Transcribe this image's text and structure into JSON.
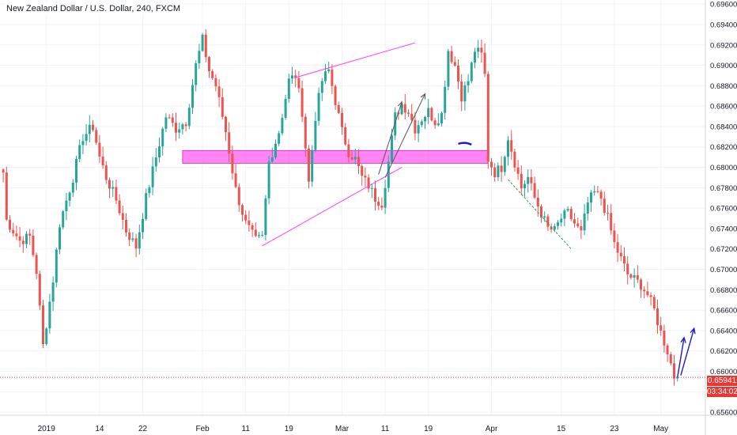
{
  "title": "New Zealand Dollar / U.S. Dollar, 240, FXCM",
  "chart_data": {
    "type": "candlestick",
    "colors": {
      "up": "#26a69a",
      "down": "#ef5350",
      "grid": "#f0f3fa",
      "axis": "#d1d4dc",
      "text": "#131722",
      "price_line": "#e53935",
      "zone": "#ff5cf0",
      "wedge": "#ff40ff",
      "arrow_dark": "#555555",
      "arrow_blue": "#1c1cc8",
      "green_line": "#2e9e4e"
    },
    "ylim": [
      0.6557,
      0.6964
    ],
    "y_ticks": [
      "0.69600",
      "0.69400",
      "0.69200",
      "0.69000",
      "0.68800",
      "0.68600",
      "0.68400",
      "0.68200",
      "0.68000",
      "0.67800",
      "0.67600",
      "0.67400",
      "0.67200",
      "0.67000",
      "0.66800",
      "0.66600",
      "0.66400",
      "0.66200",
      "0.66000",
      "0.65800",
      "0.65600"
    ],
    "x_ticks": [
      "2019",
      "14",
      "22",
      "Feb",
      "11",
      "19",
      "Mar",
      "11",
      "19",
      "Apr",
      "15",
      "23",
      "May"
    ],
    "last_price": "0.65941",
    "countdown": "03:34:02",
    "anchors": [
      [
        0,
        0.6795
      ],
      [
        1,
        0.6748
      ],
      [
        5,
        0.6728
      ],
      [
        8,
        0.6732
      ],
      [
        10,
        0.6698
      ],
      [
        12,
        0.6625
      ],
      [
        15,
        0.669
      ],
      [
        17,
        0.6745
      ],
      [
        21,
        0.679
      ],
      [
        24,
        0.683
      ],
      [
        27,
        0.684
      ],
      [
        29,
        0.681
      ],
      [
        31,
        0.679
      ],
      [
        34,
        0.6768
      ],
      [
        37,
        0.6738
      ],
      [
        40,
        0.6722
      ],
      [
        43,
        0.677
      ],
      [
        46,
        0.681
      ],
      [
        49,
        0.685
      ],
      [
        52,
        0.6838
      ],
      [
        55,
        0.6845
      ],
      [
        58,
        0.69
      ],
      [
        60,
        0.6925
      ],
      [
        62,
        0.6895
      ],
      [
        64,
        0.688
      ],
      [
        67,
        0.6835
      ],
      [
        70,
        0.6778
      ],
      [
        73,
        0.6745
      ],
      [
        76,
        0.6728
      ],
      [
        78,
        0.6731
      ],
      [
        80,
        0.6805
      ],
      [
        83,
        0.6835
      ],
      [
        86,
        0.6885
      ],
      [
        88,
        0.689
      ],
      [
        90,
        0.6855
      ],
      [
        92,
        0.6785
      ],
      [
        94,
        0.685
      ],
      [
        96,
        0.6885
      ],
      [
        98,
        0.6895
      ],
      [
        100,
        0.6865
      ],
      [
        102,
        0.6835
      ],
      [
        104,
        0.6815
      ],
      [
        106,
        0.6808
      ],
      [
        108,
        0.679
      ],
      [
        110,
        0.6782
      ],
      [
        112,
        0.677
      ],
      [
        114,
        0.6765
      ],
      [
        116,
        0.6805
      ],
      [
        118,
        0.685
      ],
      [
        120,
        0.6862
      ],
      [
        122,
        0.6855
      ],
      [
        124,
        0.6838
      ],
      [
        126,
        0.6848
      ],
      [
        128,
        0.6855
      ],
      [
        130,
        0.6845
      ],
      [
        132,
        0.6852
      ],
      [
        134,
        0.6915
      ],
      [
        136,
        0.69
      ],
      [
        138,
        0.687
      ],
      [
        140,
        0.6885
      ],
      [
        142,
        0.6915
      ],
      [
        144,
        0.691
      ],
      [
        145,
        0.689
      ],
      [
        146,
        0.6808
      ],
      [
        148,
        0.6795
      ],
      [
        150,
        0.68
      ],
      [
        152,
        0.683
      ],
      [
        154,
        0.6805
      ],
      [
        156,
        0.678
      ],
      [
        158,
        0.679
      ],
      [
        160,
        0.677
      ],
      [
        162,
        0.6755
      ],
      [
        164,
        0.674
      ],
      [
        166,
        0.6738
      ],
      [
        168,
        0.675
      ],
      [
        170,
        0.6755
      ],
      [
        172,
        0.6745
      ],
      [
        174,
        0.6735
      ],
      [
        176,
        0.6765
      ],
      [
        178,
        0.6775
      ],
      [
        180,
        0.677
      ],
      [
        182,
        0.675
      ],
      [
        184,
        0.6725
      ],
      [
        186,
        0.671
      ],
      [
        188,
        0.6695
      ],
      [
        190,
        0.669
      ],
      [
        192,
        0.6685
      ],
      [
        194,
        0.6675
      ],
      [
        196,
        0.666
      ],
      [
        198,
        0.6638
      ],
      [
        200,
        0.662
      ],
      [
        202,
        0.6595
      ],
      [
        203,
        0.6594
      ]
    ],
    "zone": {
      "x0": 54,
      "x1": 146,
      "y0": 0.6804,
      "y1": 0.68165
    },
    "lines": [
      {
        "kind": "wedge",
        "x0": 78,
        "y0": 0.6723,
        "x1": 120,
        "y1": 0.68
      },
      {
        "kind": "wedge",
        "x0": 88,
        "y0": 0.6888,
        "x1": 124,
        "y1": 0.6922
      },
      {
        "kind": "green",
        "x0": 152,
        "y0": 0.6788,
        "x1": 171,
        "y1": 0.672
      }
    ],
    "arrows": [
      {
        "kind": "dark",
        "x0": 113,
        "y0": 0.6793,
        "x1": 120,
        "y1": 0.6864
      },
      {
        "kind": "dark",
        "x0": 115,
        "y0": 0.679,
        "x1": 127,
        "y1": 0.6872
      },
      {
        "kind": "blue",
        "x0": 203,
        "y0": 0.6594,
        "x1": 205,
        "y1": 0.6633
      },
      {
        "kind": "blue",
        "x0": 204,
        "y0": 0.6596,
        "x1": 208,
        "y1": 0.6642
      }
    ],
    "blue_mark": {
      "x0": 137,
      "x1": 141,
      "y": 0.6823
    }
  }
}
